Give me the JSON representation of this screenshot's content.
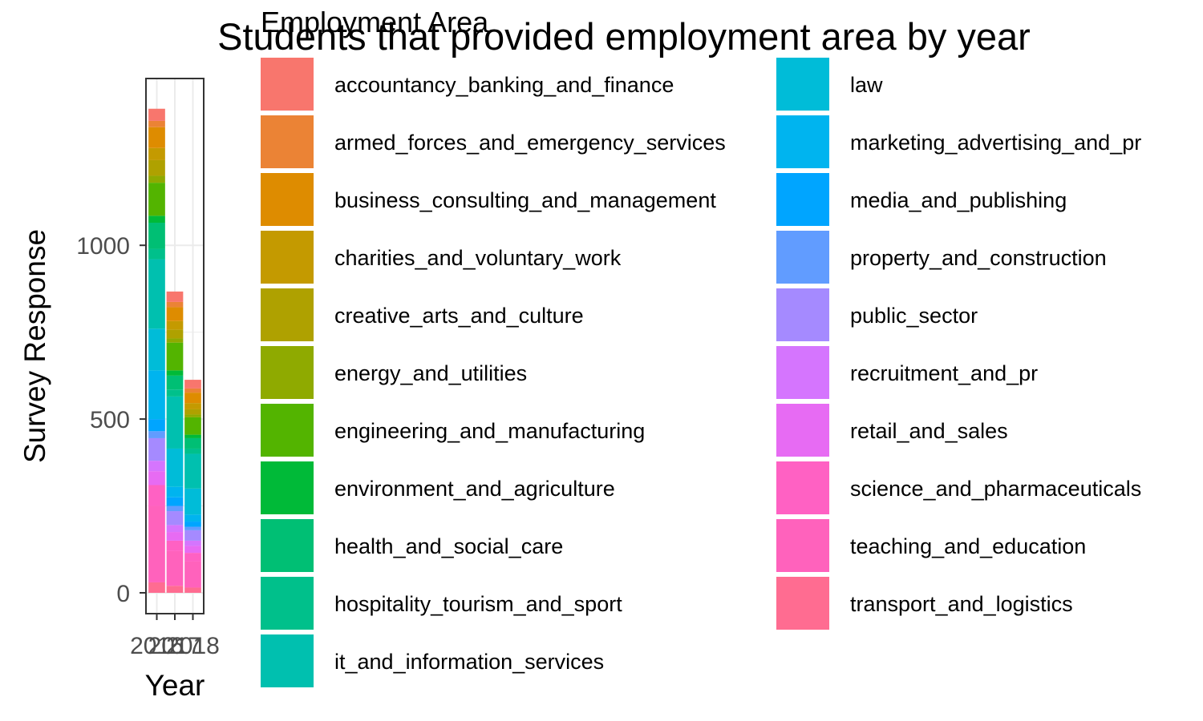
{
  "chart_data": {
    "type": "bar",
    "stacked": true,
    "title": "Students that provided employment area by year",
    "xlabel": "Year",
    "ylabel": "Survey Response",
    "categories": [
      "2016",
      "2017",
      "2018"
    ],
    "x_tick_labels": [
      "2016",
      "2017",
      "2018"
    ],
    "y_ticks": [
      0,
      500,
      1000
    ],
    "ylim": [
      -60,
      1480
    ],
    "grid": true,
    "legend": {
      "title": "Employment Area",
      "position": "right",
      "columns": 2
    },
    "series": [
      {
        "name": "accountancy_banking_and_finance",
        "color": "#F8766D",
        "values": [
          35,
          30,
          25
        ]
      },
      {
        "name": "armed_forces_and_emergency_services",
        "color": "#EB8335",
        "values": [
          18,
          15,
          12
        ]
      },
      {
        "name": "business_consulting_and_management",
        "color": "#DE8C00",
        "values": [
          60,
          40,
          30
        ]
      },
      {
        "name": "charities_and_voluntary_work",
        "color": "#C49A00",
        "values": [
          35,
          25,
          18
        ]
      },
      {
        "name": "creative_arts_and_culture",
        "color": "#AFA100",
        "values": [
          45,
          25,
          15
        ]
      },
      {
        "name": "energy_and_utilities",
        "color": "#8FAA00",
        "values": [
          20,
          12,
          8
        ]
      },
      {
        "name": "engineering_and_manufacturing",
        "color": "#53B400",
        "values": [
          95,
          80,
          50
        ]
      },
      {
        "name": "environment_and_agriculture",
        "color": "#00BA38",
        "values": [
          20,
          15,
          10
        ]
      },
      {
        "name": "health_and_social_care",
        "color": "#00BF74",
        "values": [
          75,
          40,
          30
        ]
      },
      {
        "name": "hospitality_tourism_and_sport",
        "color": "#00C08B",
        "values": [
          30,
          20,
          15
        ]
      },
      {
        "name": "it_and_information_services",
        "color": "#00C0AF",
        "values": [
          200,
          150,
          100
        ]
      },
      {
        "name": "law",
        "color": "#00BCD8",
        "values": [
          120,
          110,
          75
        ]
      },
      {
        "name": "marketing_advertising_and_pr",
        "color": "#00B4EF",
        "values": [
          140,
          30,
          20
        ]
      },
      {
        "name": "media_and_publishing",
        "color": "#00A5FF",
        "values": [
          35,
          25,
          15
        ]
      },
      {
        "name": "property_and_construction",
        "color": "#619CFF",
        "values": [
          20,
          15,
          10
        ]
      },
      {
        "name": "public_sector",
        "color": "#A58AFF",
        "values": [
          65,
          40,
          30
        ]
      },
      {
        "name": "recruitment_and_pr",
        "color": "#D575FE",
        "values": [
          30,
          20,
          15
        ]
      },
      {
        "name": "retail_and_sales",
        "color": "#E76BF3",
        "values": [
          40,
          25,
          20
        ]
      },
      {
        "name": "science_and_pharmaceuticals",
        "color": "#FF61C3",
        "values": [
          60,
          30,
          25
        ]
      },
      {
        "name": "teaching_and_education",
        "color": "#FF62BC",
        "values": [
          220,
          100,
          75
        ]
      },
      {
        "name": "transport_and_logistics",
        "color": "#FF6C91",
        "values": [
          30,
          20,
          15
        ]
      }
    ]
  },
  "colors": {
    "panel_border": "#333333",
    "grid": "#ebebeb",
    "tick_label": "#4d4d4d",
    "text": "#000000"
  }
}
